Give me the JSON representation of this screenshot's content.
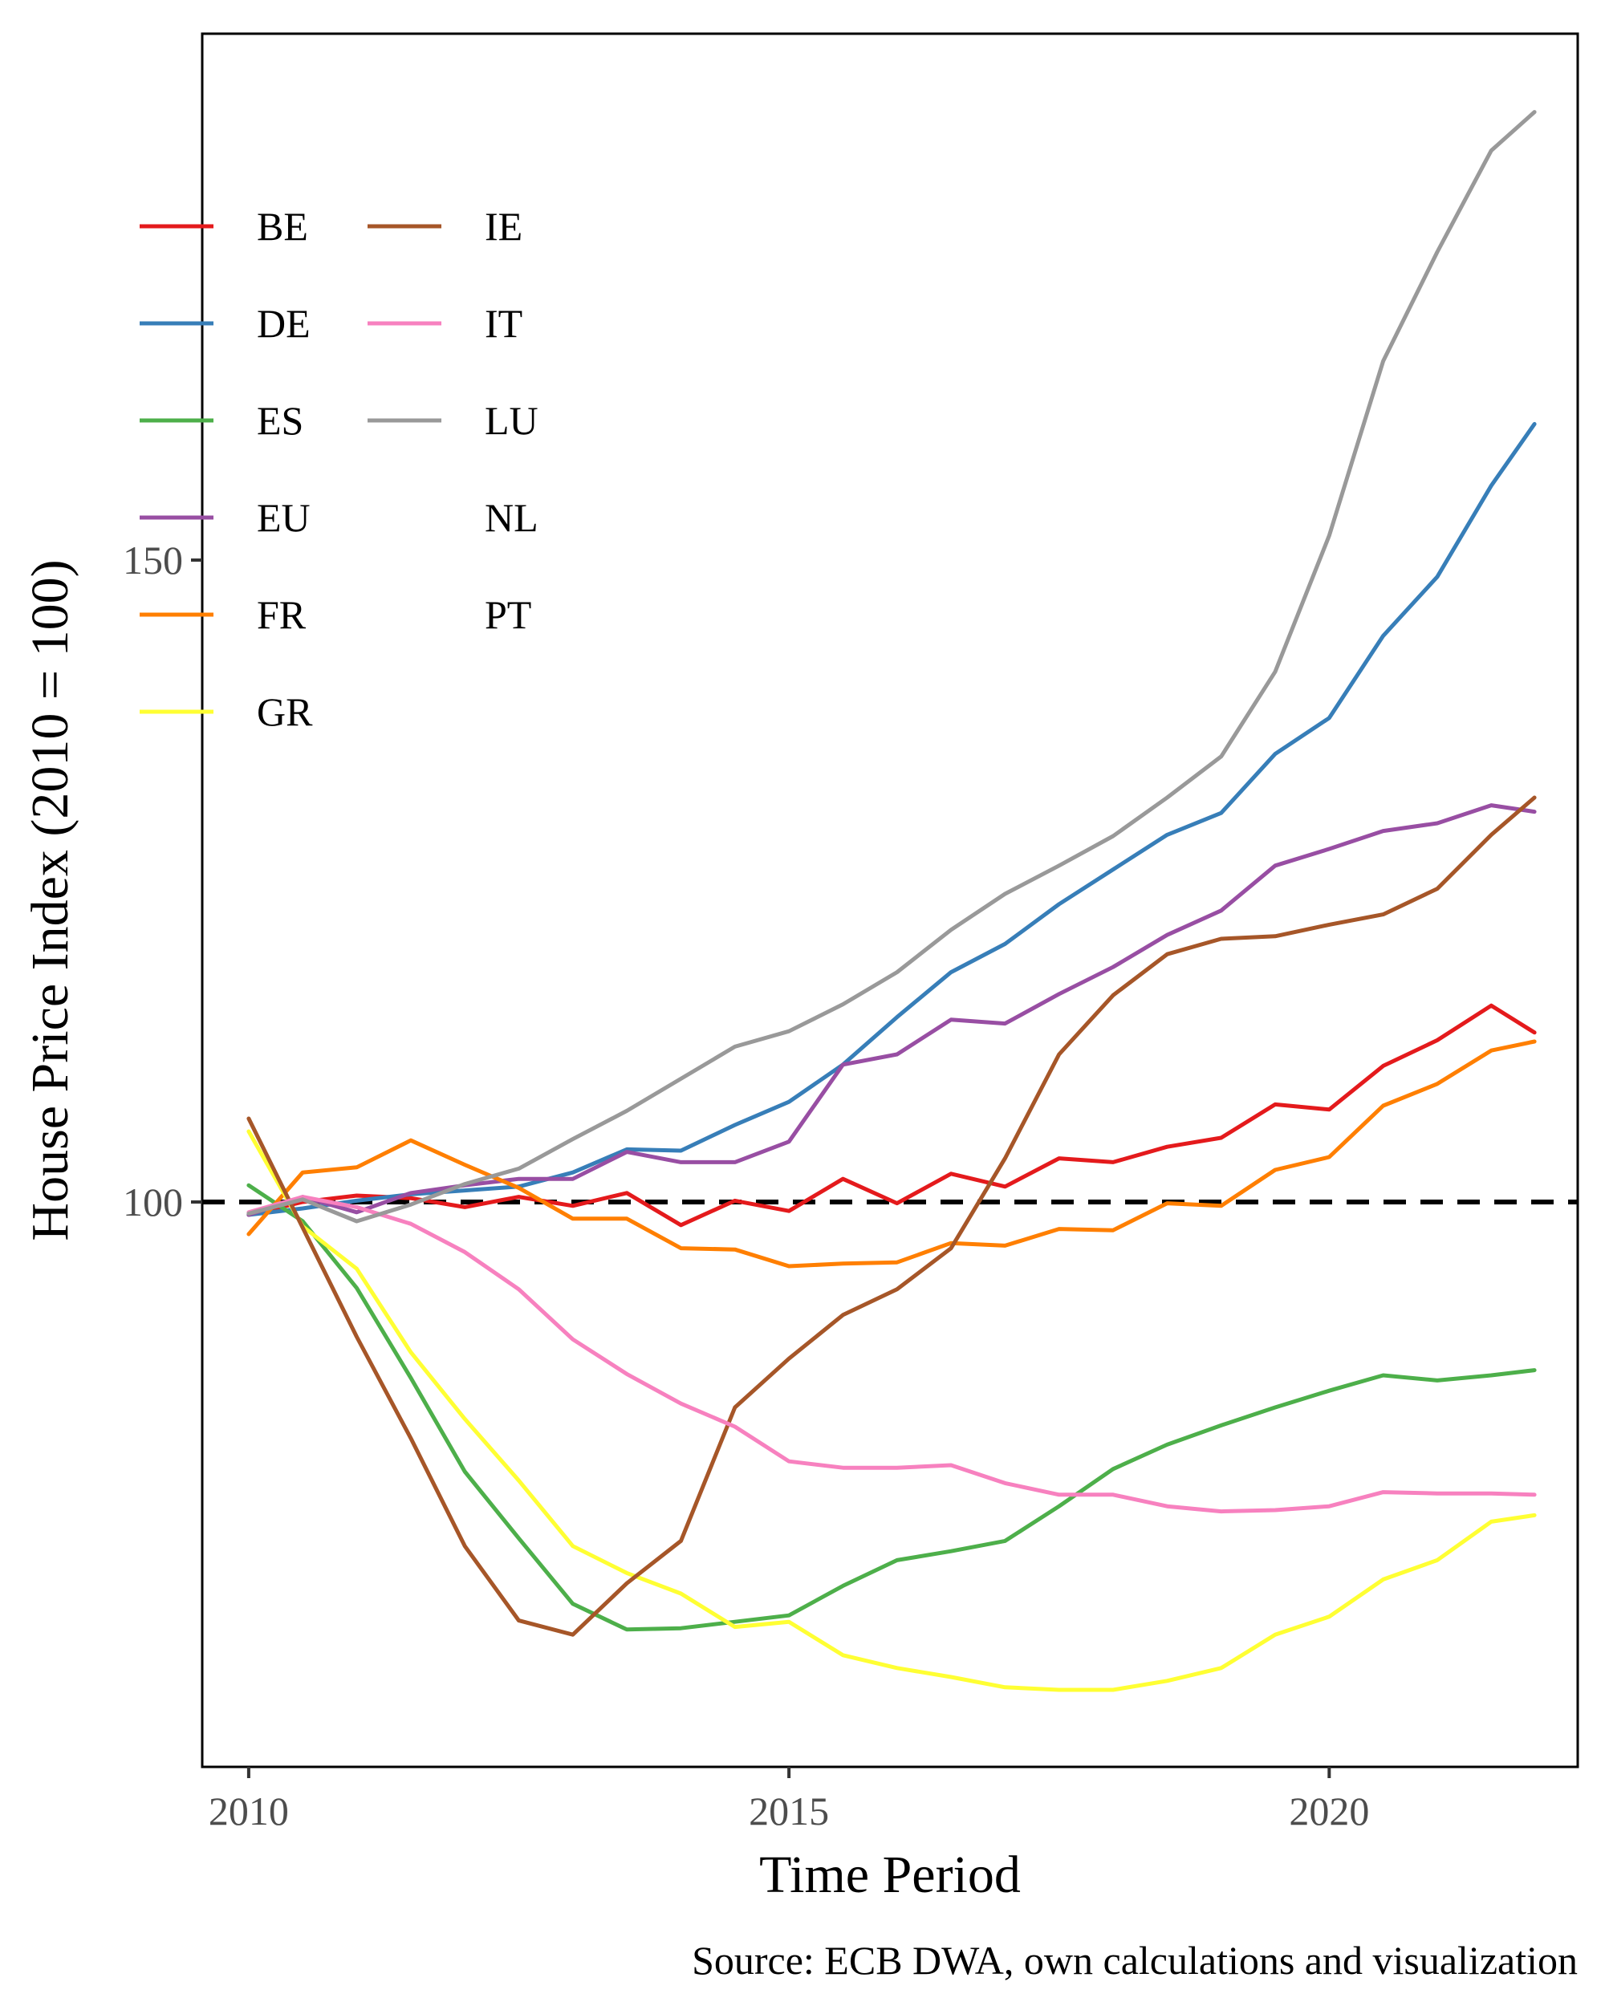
{
  "chart_data": {
    "type": "line",
    "xlabel": "Time Period",
    "ylabel": "House Price Index (2010 = 100)",
    "caption": "Source: ECB DWA, own calculations and visualization",
    "xlim": [
      2009.57,
      2022.3
    ],
    "ylim": [
      56,
      191
    ],
    "x_ticks": [
      2010,
      2015,
      2020
    ],
    "y_ticks": [
      100,
      150
    ],
    "reference_line": {
      "y": 100,
      "style": "dashed",
      "color": "#000000"
    },
    "grid": false,
    "legend_position": "top-left",
    "series": [
      {
        "name": "BE",
        "color": "#E41A1C",
        "points": [
          [
            2010.0,
            99.0
          ],
          [
            2010.5,
            100.0
          ],
          [
            2011.0,
            100.5
          ],
          [
            2011.5,
            100.3
          ],
          [
            2012.0,
            99.6
          ],
          [
            2012.5,
            100.4
          ],
          [
            2013.0,
            99.7
          ],
          [
            2013.5,
            100.7
          ],
          [
            2014.0,
            98.2
          ],
          [
            2014.5,
            100.1
          ],
          [
            2015.0,
            99.3
          ],
          [
            2015.5,
            101.8
          ],
          [
            2016.0,
            99.9
          ],
          [
            2016.5,
            102.2
          ],
          [
            2017.0,
            101.2
          ],
          [
            2017.5,
            103.4
          ],
          [
            2018.0,
            103.1
          ],
          [
            2018.5,
            104.3
          ],
          [
            2019.0,
            105.0
          ],
          [
            2019.5,
            107.6
          ],
          [
            2020.0,
            107.2
          ],
          [
            2020.5,
            110.6
          ],
          [
            2021.0,
            112.6
          ],
          [
            2021.5,
            115.3
          ],
          [
            2021.9,
            113.2
          ]
        ]
      },
      {
        "name": "DE",
        "color": "#377EB8",
        "points": [
          [
            2010.0,
            99.0
          ],
          [
            2010.5,
            99.5
          ],
          [
            2011.0,
            100.1
          ],
          [
            2011.5,
            100.6
          ],
          [
            2012.0,
            100.9
          ],
          [
            2012.5,
            101.2
          ],
          [
            2013.0,
            102.3
          ],
          [
            2013.5,
            104.1
          ],
          [
            2014.0,
            104.0
          ],
          [
            2014.5,
            106.0
          ],
          [
            2015.0,
            107.8
          ],
          [
            2015.5,
            110.7
          ],
          [
            2016.0,
            114.4
          ],
          [
            2016.5,
            117.9
          ],
          [
            2017.0,
            120.1
          ],
          [
            2017.5,
            123.2
          ],
          [
            2018.0,
            125.9
          ],
          [
            2018.5,
            128.6
          ],
          [
            2019.0,
            130.3
          ],
          [
            2019.5,
            134.9
          ],
          [
            2020.0,
            137.7
          ],
          [
            2020.5,
            144.1
          ],
          [
            2021.0,
            148.7
          ],
          [
            2021.5,
            155.8
          ],
          [
            2021.9,
            160.6
          ]
        ]
      },
      {
        "name": "ES",
        "color": "#4DAF4A",
        "points": [
          [
            2010.0,
            101.3
          ],
          [
            2010.5,
            98.5
          ],
          [
            2011.0,
            93.3
          ],
          [
            2011.5,
            86.3
          ],
          [
            2012.0,
            79.0
          ],
          [
            2012.5,
            73.8
          ],
          [
            2013.0,
            68.7
          ],
          [
            2013.5,
            66.7
          ],
          [
            2014.0,
            66.8
          ],
          [
            2014.5,
            67.3
          ],
          [
            2015.0,
            67.8
          ],
          [
            2015.5,
            70.1
          ],
          [
            2016.0,
            72.1
          ],
          [
            2016.5,
            72.8
          ],
          [
            2017.0,
            73.6
          ],
          [
            2017.5,
            76.3
          ],
          [
            2018.0,
            79.2
          ],
          [
            2018.5,
            81.1
          ],
          [
            2019.0,
            82.6
          ],
          [
            2019.5,
            84.0
          ],
          [
            2020.0,
            85.3
          ],
          [
            2020.5,
            86.5
          ],
          [
            2021.0,
            86.1
          ],
          [
            2021.5,
            86.5
          ],
          [
            2021.9,
            86.9
          ]
        ]
      },
      {
        "name": "EU",
        "color": "#984EA3",
        "points": [
          [
            2010.0,
            99.0
          ],
          [
            2010.5,
            100.4
          ],
          [
            2011.0,
            99.2
          ],
          [
            2011.5,
            100.7
          ],
          [
            2012.0,
            101.3
          ],
          [
            2012.5,
            101.8
          ],
          [
            2013.0,
            101.8
          ],
          [
            2013.5,
            103.9
          ],
          [
            2014.0,
            103.1
          ],
          [
            2014.5,
            103.1
          ],
          [
            2015.0,
            104.7
          ],
          [
            2015.5,
            110.7
          ],
          [
            2016.0,
            111.5
          ],
          [
            2016.5,
            114.2
          ],
          [
            2017.0,
            113.9
          ],
          [
            2017.5,
            116.2
          ],
          [
            2018.0,
            118.3
          ],
          [
            2018.5,
            120.8
          ],
          [
            2019.0,
            122.7
          ],
          [
            2019.5,
            126.2
          ],
          [
            2020.0,
            127.5
          ],
          [
            2020.5,
            128.9
          ],
          [
            2021.0,
            129.5
          ],
          [
            2021.5,
            130.9
          ],
          [
            2021.9,
            130.4
          ]
        ]
      },
      {
        "name": "FR",
        "color": "#FF7F00",
        "points": [
          [
            2010.0,
            97.5
          ],
          [
            2010.5,
            102.3
          ],
          [
            2011.0,
            102.7
          ],
          [
            2011.5,
            104.8
          ],
          [
            2012.0,
            102.9
          ],
          [
            2012.5,
            101.1
          ],
          [
            2013.0,
            98.7
          ],
          [
            2013.5,
            98.7
          ],
          [
            2014.0,
            96.4
          ],
          [
            2014.5,
            96.3
          ],
          [
            2015.0,
            95.0
          ],
          [
            2015.5,
            95.2
          ],
          [
            2016.0,
            95.3
          ],
          [
            2016.5,
            96.8
          ],
          [
            2017.0,
            96.6
          ],
          [
            2017.5,
            97.9
          ],
          [
            2018.0,
            97.8
          ],
          [
            2018.5,
            99.9
          ],
          [
            2019.0,
            99.7
          ],
          [
            2019.5,
            102.5
          ],
          [
            2020.0,
            103.5
          ],
          [
            2020.5,
            107.5
          ],
          [
            2021.0,
            109.2
          ],
          [
            2021.5,
            111.8
          ],
          [
            2021.9,
            112.5
          ]
        ]
      },
      {
        "name": "GR",
        "color": "#FFFF33",
        "points": [
          [
            2010.0,
            105.5
          ],
          [
            2010.5,
            98.1
          ],
          [
            2011.0,
            94.8
          ],
          [
            2011.5,
            88.3
          ],
          [
            2012.0,
            83.1
          ],
          [
            2012.5,
            78.3
          ],
          [
            2013.0,
            73.2
          ],
          [
            2013.5,
            71.1
          ],
          [
            2014.0,
            69.5
          ],
          [
            2014.5,
            66.9
          ],
          [
            2015.0,
            67.3
          ],
          [
            2015.5,
            64.7
          ],
          [
            2016.0,
            63.7
          ],
          [
            2016.5,
            63.0
          ],
          [
            2017.0,
            62.2
          ],
          [
            2017.5,
            62.0
          ],
          [
            2018.0,
            62.0
          ],
          [
            2018.5,
            62.7
          ],
          [
            2019.0,
            63.7
          ],
          [
            2019.5,
            66.3
          ],
          [
            2020.0,
            67.7
          ],
          [
            2020.5,
            70.6
          ],
          [
            2021.0,
            72.1
          ],
          [
            2021.5,
            75.1
          ],
          [
            2021.9,
            75.6
          ]
        ]
      },
      {
        "name": "IE",
        "color": "#A65628",
        "points": [
          [
            2010.0,
            106.5
          ],
          [
            2010.5,
            98.0
          ],
          [
            2011.0,
            89.5
          ],
          [
            2011.5,
            81.6
          ],
          [
            2012.0,
            73.2
          ],
          [
            2012.5,
            67.4
          ],
          [
            2013.0,
            66.3
          ],
          [
            2013.5,
            70.3
          ],
          [
            2014.0,
            73.6
          ],
          [
            2014.5,
            84.0
          ],
          [
            2015.0,
            87.8
          ],
          [
            2015.5,
            91.2
          ],
          [
            2016.0,
            93.2
          ],
          [
            2016.5,
            96.4
          ],
          [
            2017.0,
            103.4
          ],
          [
            2017.5,
            111.5
          ],
          [
            2018.0,
            116.1
          ],
          [
            2018.5,
            119.3
          ],
          [
            2019.0,
            120.5
          ],
          [
            2019.5,
            120.7
          ],
          [
            2020.0,
            121.6
          ],
          [
            2020.5,
            122.4
          ],
          [
            2021.0,
            124.4
          ],
          [
            2021.5,
            128.6
          ],
          [
            2021.9,
            131.5
          ]
        ]
      },
      {
        "name": "IT",
        "color": "#F781BF",
        "points": [
          [
            2010.0,
            99.2
          ],
          [
            2010.5,
            100.4
          ],
          [
            2011.0,
            99.6
          ],
          [
            2011.5,
            98.3
          ],
          [
            2012.0,
            96.1
          ],
          [
            2012.5,
            93.2
          ],
          [
            2013.0,
            89.3
          ],
          [
            2013.5,
            86.6
          ],
          [
            2014.0,
            84.3
          ],
          [
            2014.5,
            82.5
          ],
          [
            2015.0,
            79.8
          ],
          [
            2015.5,
            79.3
          ],
          [
            2016.0,
            79.3
          ],
          [
            2016.5,
            79.5
          ],
          [
            2017.0,
            78.1
          ],
          [
            2017.5,
            77.2
          ],
          [
            2018.0,
            77.2
          ],
          [
            2018.5,
            76.3
          ],
          [
            2019.0,
            75.9
          ],
          [
            2019.5,
            76.0
          ],
          [
            2020.0,
            76.3
          ],
          [
            2020.5,
            77.4
          ],
          [
            2021.0,
            77.3
          ],
          [
            2021.5,
            77.3
          ],
          [
            2021.9,
            77.2
          ]
        ]
      },
      {
        "name": "LU",
        "color": "#999999",
        "points": [
          [
            2010.0,
            99.1
          ],
          [
            2010.5,
            100.2
          ],
          [
            2011.0,
            98.5
          ],
          [
            2011.5,
            99.8
          ],
          [
            2012.0,
            101.4
          ],
          [
            2012.5,
            102.6
          ],
          [
            2013.0,
            104.9
          ],
          [
            2013.5,
            107.1
          ],
          [
            2014.0,
            109.6
          ],
          [
            2014.5,
            112.1
          ],
          [
            2015.0,
            113.3
          ],
          [
            2015.5,
            115.4
          ],
          [
            2016.0,
            117.9
          ],
          [
            2016.5,
            121.2
          ],
          [
            2017.0,
            124.0
          ],
          [
            2017.5,
            126.2
          ],
          [
            2018.0,
            128.5
          ],
          [
            2018.5,
            131.5
          ],
          [
            2019.0,
            134.7
          ],
          [
            2019.5,
            141.3
          ],
          [
            2020.0,
            151.9
          ],
          [
            2020.5,
            165.5
          ],
          [
            2021.0,
            174.0
          ],
          [
            2021.5,
            181.9
          ],
          [
            2021.9,
            184.9
          ]
        ]
      }
    ],
    "legend_entries_without_line": [
      "NL",
      "PT"
    ]
  }
}
